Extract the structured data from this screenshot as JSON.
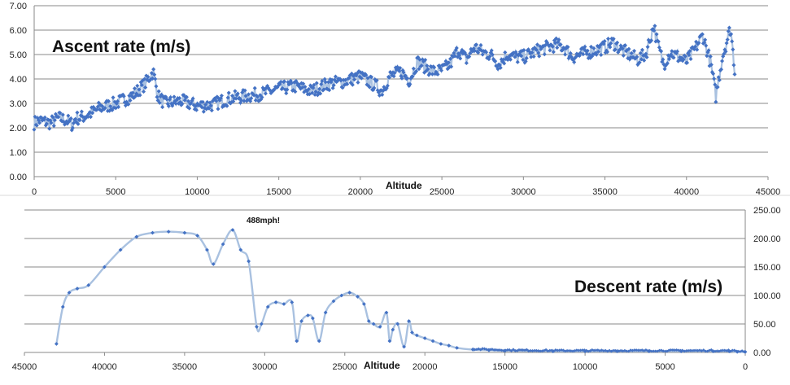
{
  "chart_data": [
    {
      "type": "scatter",
      "title": "Ascent rate (m/s)",
      "xlabel": "Altitude",
      "ylabel": "",
      "xlim": [
        0,
        45000
      ],
      "ylim": [
        0,
        7
      ],
      "grid": true,
      "x_ticks": [
        "0",
        "5000",
        "10000",
        "15000",
        "20000",
        "25000",
        "30000",
        "35000",
        "40000",
        "45000"
      ],
      "y_ticks": [
        "0.00",
        "1.00",
        "2.00",
        "3.00",
        "4.00",
        "5.00",
        "6.00",
        "7.00"
      ],
      "series": [
        {
          "x": [
            0,
            300,
            1000,
            1500,
            2000,
            2400,
            2500,
            2800,
            3500,
            4000,
            5000,
            6000,
            6800,
            7300,
            7600,
            8000,
            9000,
            10000,
            11000,
            11500,
            12000,
            14000,
            15000,
            16000,
            17000,
            18000,
            19000,
            20000,
            21000,
            21300,
            21800,
            22500,
            23000,
            23500,
            24000,
            24500,
            25000,
            25500,
            26000,
            26500,
            27000,
            27500,
            28000,
            28500,
            29000,
            29500,
            30000,
            31000,
            32000,
            32500,
            33000,
            34000,
            35000,
            35500,
            36000,
            37000,
            37500,
            38000,
            38200,
            38600,
            39000,
            39500,
            40000,
            40500,
            41000,
            41500,
            41800,
            42200,
            42700,
            43000
          ],
          "y": [
            2.2,
            2.3,
            2.2,
            2.4,
            2.3,
            2.1,
            2.4,
            2.4,
            2.6,
            2.8,
            3.0,
            3.3,
            3.8,
            4.3,
            3.3,
            3.0,
            3.1,
            2.9,
            2.95,
            3.1,
            3.2,
            3.4,
            3.6,
            3.7,
            3.5,
            3.8,
            3.9,
            4.1,
            3.7,
            3.5,
            4.1,
            4.3,
            3.95,
            4.7,
            4.5,
            4.3,
            4.35,
            4.6,
            5.2,
            4.8,
            5.3,
            5.1,
            5.0,
            4.6,
            5.0,
            4.9,
            4.9,
            5.2,
            5.4,
            5.3,
            4.9,
            5.1,
            5.3,
            5.5,
            5.2,
            4.8,
            5.0,
            6.2,
            5.5,
            4.6,
            5.1,
            4.9,
            4.7,
            5.2,
            5.8,
            4.6,
            3.3,
            4.9,
            6.1,
            4.1
          ]
        }
      ]
    },
    {
      "type": "line",
      "title": "Descent rate (m/s)",
      "xlabel": "Altitude",
      "ylabel": "",
      "xlim": [
        0,
        45000
      ],
      "x_reversed": true,
      "ylim": [
        0,
        250
      ],
      "y_axis_side": "right",
      "grid": true,
      "x_ticks": [
        "45000",
        "40000",
        "35000",
        "30000",
        "25000",
        "20000",
        "15000",
        "10000",
        "5000",
        "0"
      ],
      "y_ticks": [
        "0.00",
        "50.00",
        "100.00",
        "150.00",
        "200.00",
        "250.00"
      ],
      "annotation": "488mph!",
      "series": [
        {
          "x": [
            43000,
            42600,
            42200,
            41700,
            41000,
            40000,
            39000,
            38000,
            37000,
            36000,
            35000,
            34200,
            33600,
            33200,
            32600,
            32000,
            31500,
            31000,
            30500,
            30200,
            29800,
            29300,
            28800,
            28300,
            28000,
            27700,
            27300,
            27000,
            26600,
            26200,
            25700,
            25200,
            24700,
            24200,
            23800,
            23500,
            23200,
            22800,
            22400,
            22200,
            22000,
            21700,
            21300,
            21000,
            20800,
            20500,
            20000,
            19500,
            19000,
            18500,
            18000,
            17000,
            16000,
            15000,
            12000,
            10000,
            8000,
            6000,
            4000,
            2000,
            1000,
            500,
            0
          ],
          "y": [
            15,
            80,
            105,
            112,
            118,
            150,
            180,
            203,
            210,
            212,
            210,
            205,
            180,
            155,
            190,
            215,
            180,
            160,
            45,
            50,
            80,
            88,
            85,
            88,
            20,
            55,
            65,
            60,
            20,
            70,
            90,
            100,
            105,
            98,
            85,
            55,
            50,
            45,
            70,
            20,
            40,
            50,
            10,
            55,
            35,
            30,
            25,
            20,
            15,
            12,
            8,
            5,
            4,
            3,
            2,
            2,
            2,
            2,
            2,
            2,
            2,
            1,
            1
          ]
        }
      ]
    }
  ]
}
